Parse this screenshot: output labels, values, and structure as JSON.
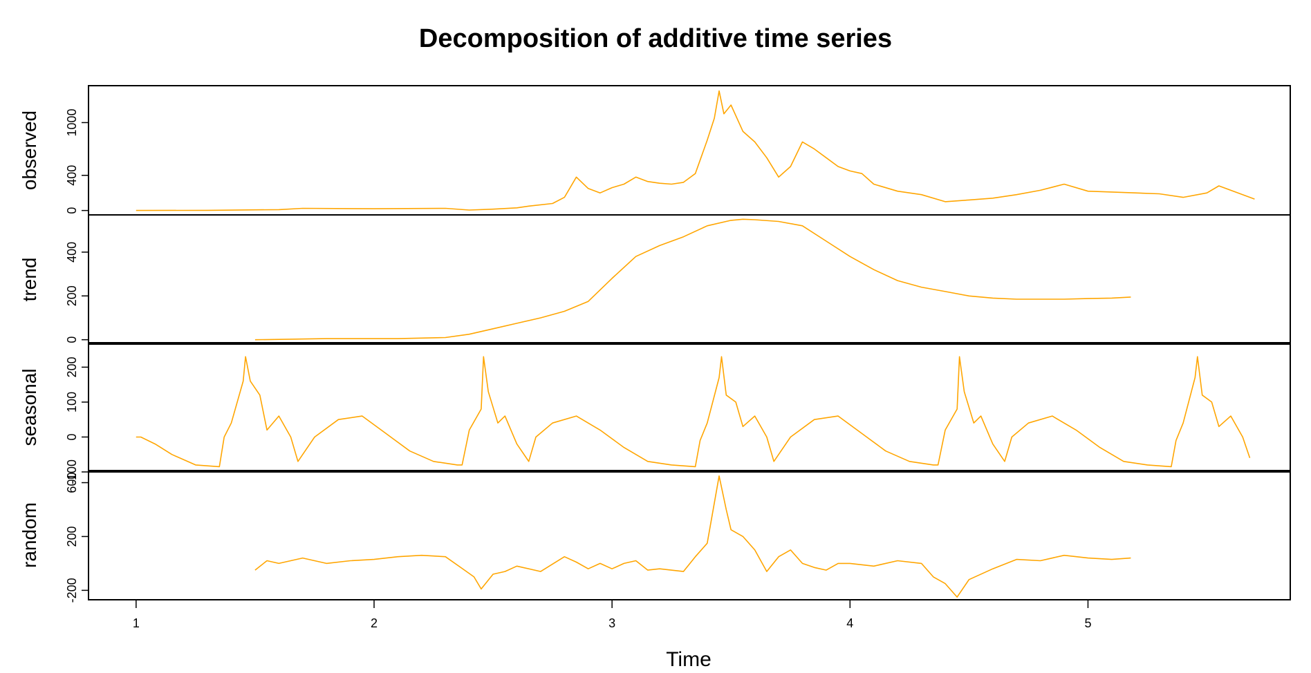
{
  "chart_data": {
    "type": "line",
    "title": "Decomposition of additive time series",
    "xlabel": "Time",
    "xlim": [
      0.8,
      5.85
    ],
    "x_ticks": [
      1,
      2,
      3,
      4,
      5
    ],
    "x_tick_labels": [
      "1",
      "2",
      "3",
      "4",
      "5"
    ],
    "line_color": "#FFA500",
    "grid": false,
    "panels": [
      {
        "name": "observed",
        "ylim": [
          -50,
          1420
        ],
        "y_ticks": [
          0,
          400,
          1000
        ],
        "y_tick_labels": [
          "0",
          "400",
          "1000"
        ],
        "x": [
          1.0,
          1.3,
          1.6,
          1.7,
          2.0,
          2.3,
          2.4,
          2.5,
          2.6,
          2.65,
          2.75,
          2.8,
          2.85,
          2.9,
          2.95,
          3.0,
          3.05,
          3.1,
          3.15,
          3.2,
          3.25,
          3.3,
          3.35,
          3.4,
          3.43,
          3.45,
          3.47,
          3.5,
          3.55,
          3.6,
          3.65,
          3.7,
          3.75,
          3.8,
          3.85,
          3.9,
          3.95,
          4.0,
          4.05,
          4.1,
          4.2,
          4.3,
          4.4,
          4.5,
          4.6,
          4.7,
          4.8,
          4.9,
          5.0,
          5.1,
          5.2,
          5.3,
          5.4,
          5.5,
          5.55,
          5.6,
          5.7
        ],
        "y": [
          0,
          2,
          10,
          25,
          20,
          25,
          5,
          15,
          30,
          50,
          80,
          150,
          380,
          250,
          200,
          260,
          300,
          380,
          330,
          310,
          300,
          320,
          420,
          800,
          1050,
          1360,
          1100,
          1200,
          900,
          780,
          600,
          380,
          500,
          780,
          700,
          600,
          500,
          450,
          420,
          300,
          220,
          180,
          100,
          120,
          140,
          180,
          230,
          300,
          220,
          210,
          200,
          190,
          150,
          200,
          280,
          230,
          130
        ]
      },
      {
        "name": "trend",
        "ylim": [
          -20,
          570
        ],
        "y_ticks": [
          0,
          200,
          400
        ],
        "y_tick_labels": [
          "0",
          "200",
          "400"
        ],
        "x": [
          1.5,
          1.8,
          2.1,
          2.3,
          2.4,
          2.5,
          2.6,
          2.7,
          2.8,
          2.9,
          3.0,
          3.1,
          3.2,
          3.3,
          3.4,
          3.5,
          3.55,
          3.6,
          3.7,
          3.8,
          3.9,
          4.0,
          4.1,
          4.2,
          4.3,
          4.4,
          4.5,
          4.6,
          4.7,
          4.8,
          4.9,
          5.0,
          5.1,
          5.18
        ],
        "y": [
          0,
          5,
          5,
          10,
          25,
          50,
          75,
          100,
          130,
          175,
          280,
          380,
          430,
          470,
          520,
          545,
          550,
          548,
          540,
          520,
          450,
          380,
          320,
          270,
          240,
          220,
          200,
          190,
          185,
          185,
          185,
          188,
          190,
          195
        ]
      },
      {
        "name": "seasonal",
        "ylim": [
          -100,
          270
        ],
        "y_ticks": [
          -100,
          0,
          100,
          200
        ],
        "y_tick_labels": [
          "-100",
          "0",
          "100",
          "200"
        ],
        "x": [
          1.0,
          1.02,
          1.08,
          1.15,
          1.25,
          1.35,
          1.37,
          1.4,
          1.45,
          1.46,
          1.48,
          1.52,
          1.55,
          1.6,
          1.65,
          1.68,
          1.75,
          1.85,
          1.95,
          2.05,
          2.15,
          2.25,
          2.35,
          2.37,
          2.4,
          2.45,
          2.46,
          2.48,
          2.52,
          2.55,
          2.6,
          2.65,
          2.68,
          2.75,
          2.85,
          2.95,
          3.05,
          3.15,
          3.25,
          3.35,
          3.37,
          3.4,
          3.45,
          3.46,
          3.48,
          3.52,
          3.55,
          3.6,
          3.65,
          3.68,
          3.75,
          3.85,
          3.95,
          4.05,
          4.15,
          4.25,
          4.35,
          4.37,
          4.4,
          4.45,
          4.46,
          4.48,
          4.52,
          4.55,
          4.6,
          4.65,
          4.68,
          4.75,
          4.85,
          4.95,
          5.05,
          5.15,
          5.25,
          5.35,
          5.37,
          5.4,
          5.45,
          5.46,
          5.48,
          5.52,
          5.55,
          5.6,
          5.65,
          5.68
        ],
        "y": [
          0,
          0,
          -20,
          -50,
          -80,
          -85,
          0,
          40,
          160,
          230,
          160,
          120,
          20,
          60,
          0,
          -70,
          0,
          50,
          60,
          10,
          -40,
          -70,
          -80,
          -80,
          20,
          80,
          230,
          130,
          40,
          60,
          -20,
          -70,
          0,
          40,
          60,
          20,
          -30,
          -70,
          -80,
          -85,
          -10,
          40,
          170,
          230,
          120,
          100,
          30,
          60,
          0,
          -70,
          0,
          50,
          60,
          10,
          -40,
          -70,
          -80,
          -80,
          20,
          80,
          230,
          130,
          40,
          60,
          -20,
          -70,
          0,
          40,
          60,
          20,
          -30,
          -70,
          -80,
          -85,
          -10,
          40,
          170,
          230,
          120,
          100,
          30,
          60,
          0,
          -60
        ]
      },
      {
        "name": "random",
        "ylim": [
          -270,
          690
        ],
        "y_ticks": [
          -200,
          200,
          600
        ],
        "y_tick_labels": [
          "-200",
          "200",
          "600"
        ],
        "x": [
          1.5,
          1.55,
          1.6,
          1.7,
          1.8,
          1.9,
          2.0,
          2.1,
          2.2,
          2.3,
          2.38,
          2.42,
          2.45,
          2.5,
          2.55,
          2.6,
          2.7,
          2.8,
          2.85,
          2.9,
          2.95,
          3.0,
          3.05,
          3.1,
          3.15,
          3.2,
          3.3,
          3.35,
          3.4,
          3.45,
          3.48,
          3.5,
          3.55,
          3.6,
          3.65,
          3.7,
          3.75,
          3.8,
          3.85,
          3.9,
          3.95,
          4.0,
          4.1,
          4.2,
          4.3,
          4.35,
          4.4,
          4.45,
          4.5,
          4.6,
          4.7,
          4.8,
          4.9,
          5.0,
          5.1,
          5.18
        ],
        "y": [
          -50,
          20,
          0,
          40,
          0,
          20,
          30,
          50,
          60,
          50,
          -50,
          -100,
          -190,
          -80,
          -60,
          -20,
          -60,
          50,
          10,
          -40,
          0,
          -40,
          0,
          20,
          -50,
          -40,
          -60,
          50,
          150,
          650,
          400,
          250,
          200,
          100,
          -60,
          50,
          100,
          0,
          -30,
          -50,
          0,
          0,
          -20,
          20,
          0,
          -100,
          -150,
          -250,
          -120,
          -40,
          30,
          20,
          60,
          40,
          30,
          40
        ]
      }
    ]
  }
}
